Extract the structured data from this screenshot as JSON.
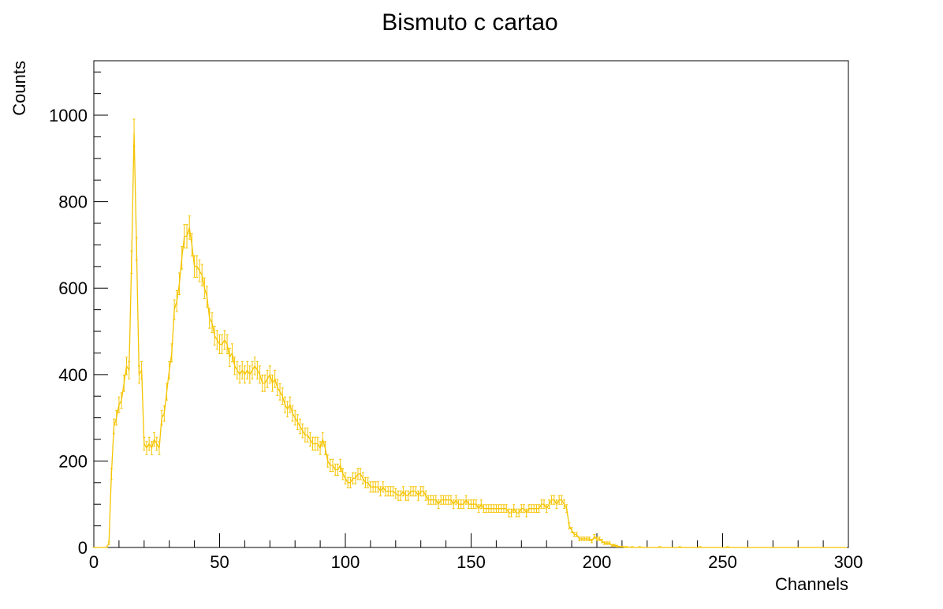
{
  "chart_data": {
    "type": "errorbar",
    "title": "Bismuto c cartao",
    "x_label": "Channels",
    "y_label": "Counts",
    "color": "#f5c400",
    "xlim": [
      0,
      300
    ],
    "ylim": [
      0,
      1126
    ],
    "xticks": [
      0,
      50,
      100,
      150,
      200,
      250,
      300
    ],
    "yticks": [
      0,
      200,
      400,
      600,
      800,
      1000
    ],
    "xticks_minor": [
      10,
      20,
      30,
      40,
      60,
      70,
      80,
      90,
      110,
      120,
      130,
      140,
      160,
      170,
      180,
      190,
      210,
      220,
      230,
      240,
      260,
      270,
      280,
      290
    ],
    "yticks_minor": [
      50,
      100,
      150,
      250,
      300,
      350,
      450,
      500,
      550,
      650,
      700,
      750,
      850,
      900,
      950,
      1050,
      1100
    ],
    "x": [
      0,
      1,
      2,
      3,
      4,
      5,
      6,
      7,
      8,
      9,
      10,
      11,
      12,
      13,
      14,
      15,
      16,
      17,
      18,
      19,
      20,
      21,
      22,
      23,
      24,
      25,
      26,
      27,
      28,
      29,
      30,
      31,
      32,
      33,
      34,
      35,
      36,
      37,
      38,
      39,
      40,
      41,
      42,
      43,
      44,
      45,
      46,
      47,
      48,
      49,
      50,
      51,
      52,
      53,
      54,
      55,
      56,
      57,
      58,
      59,
      60,
      61,
      62,
      63,
      64,
      65,
      66,
      67,
      68,
      69,
      70,
      71,
      72,
      73,
      74,
      75,
      76,
      77,
      78,
      79,
      80,
      81,
      82,
      83,
      84,
      85,
      86,
      87,
      88,
      89,
      90,
      91,
      92,
      93,
      94,
      95,
      96,
      97,
      98,
      99,
      100,
      101,
      102,
      103,
      104,
      105,
      106,
      107,
      108,
      109,
      110,
      111,
      112,
      113,
      114,
      115,
      116,
      117,
      118,
      119,
      120,
      121,
      122,
      123,
      124,
      125,
      126,
      127,
      128,
      129,
      130,
      131,
      132,
      133,
      134,
      135,
      136,
      137,
      138,
      139,
      140,
      141,
      142,
      143,
      144,
      145,
      146,
      147,
      148,
      149,
      150,
      151,
      152,
      153,
      154,
      155,
      156,
      157,
      158,
      159,
      160,
      161,
      162,
      163,
      164,
      165,
      166,
      167,
      168,
      169,
      170,
      171,
      172,
      173,
      174,
      175,
      176,
      177,
      178,
      179,
      180,
      181,
      182,
      183,
      184,
      185,
      186,
      187,
      188,
      189,
      190,
      191,
      192,
      193,
      194,
      195,
      196,
      197,
      198,
      199,
      200,
      201,
      202,
      203,
      204,
      205,
      206,
      207,
      208,
      209,
      210,
      211,
      212,
      213,
      214,
      215,
      216,
      217,
      218,
      219,
      220,
      221,
      222,
      223,
      224,
      225,
      226,
      227,
      228,
      229,
      230,
      231,
      232,
      233,
      234,
      235,
      236,
      237,
      238,
      239,
      240,
      241,
      242,
      243,
      244,
      245,
      246,
      247,
      248,
      249,
      250,
      251,
      252,
      253,
      254,
      255,
      256,
      257,
      258,
      259,
      260,
      261,
      262,
      263,
      264,
      265,
      266,
      267,
      268,
      269,
      270,
      271,
      272,
      273,
      274,
      275,
      276,
      277,
      278,
      279,
      280,
      281,
      282,
      283,
      284,
      285,
      286,
      287,
      288,
      289,
      290,
      291,
      292,
      293,
      294,
      295,
      296,
      297,
      298,
      299
    ],
    "values": [
      0,
      0,
      0,
      0,
      0,
      0,
      10,
      170,
      280,
      300,
      330,
      340,
      380,
      420,
      410,
      660,
      960,
      690,
      400,
      410,
      240,
      230,
      240,
      230,
      250,
      240,
      230,
      300,
      310,
      360,
      410,
      450,
      550,
      570,
      610,
      670,
      720,
      720,
      740,
      700,
      650,
      650,
      640,
      630,
      600,
      580,
      530,
      520,
      490,
      480,
      470,
      470,
      480,
      470,
      440,
      450,
      420,
      410,
      400,
      410,
      400,
      410,
      400,
      410,
      420,
      410,
      400,
      380,
      380,
      390,
      400,
      380,
      390,
      370,
      360,
      350,
      330,
      320,
      330,
      310,
      300,
      290,
      280,
      270,
      260,
      260,
      250,
      240,
      240,
      240,
      230,
      250,
      230,
      200,
      190,
      190,
      180,
      180,
      190,
      170,
      160,
      150,
      150,
      160,
      160,
      170,
      170,
      160,
      150,
      150,
      140,
      140,
      140,
      140,
      130,
      140,
      130,
      130,
      130,
      130,
      125,
      120,
      120,
      130,
      120,
      120,
      130,
      130,
      130,
      120,
      130,
      130,
      120,
      110,
      110,
      110,
      110,
      100,
      110,
      110,
      110,
      110,
      110,
      100,
      110,
      100,
      100,
      100,
      110,
      100,
      100,
      100,
      100,
      90,
      100,
      90,
      90,
      90,
      90,
      90,
      90,
      90,
      90,
      90,
      90,
      80,
      80,
      90,
      80,
      80,
      90,
      90,
      80,
      90,
      90,
      90,
      90,
      90,
      100,
      100,
      90,
      100,
      110,
      110,
      100,
      110,
      110,
      100,
      90,
      50,
      40,
      30,
      30,
      20,
      20,
      20,
      20,
      20,
      15,
      25,
      20,
      20,
      15,
      10,
      10,
      10,
      5,
      5,
      3,
      2,
      2,
      1,
      1,
      0,
      1,
      0,
      0,
      1,
      0,
      0,
      0,
      0,
      0,
      0,
      0,
      1,
      0,
      0,
      0,
      0,
      0,
      0,
      0,
      1,
      0,
      0,
      0,
      0,
      0,
      0,
      0,
      1,
      0,
      0,
      0,
      0,
      0,
      0,
      0,
      0,
      0,
      0,
      1,
      0,
      0,
      0,
      0,
      0,
      0,
      0,
      0,
      0,
      0,
      0,
      0,
      0,
      0,
      0,
      0,
      0,
      0,
      0,
      0,
      0,
      0,
      0,
      0,
      0,
      0,
      0,
      0,
      0,
      0,
      0,
      0,
      0,
      0,
      0,
      0,
      0,
      0,
      0,
      0,
      0,
      0,
      0,
      0,
      0,
      0,
      0
    ],
    "errors": [
      0,
      0,
      0,
      0,
      0,
      0,
      3,
      13,
      17,
      17,
      18,
      18,
      19,
      20,
      20,
      26,
      31,
      26,
      20,
      20,
      15,
      15,
      15,
      15,
      16,
      15,
      15,
      17,
      18,
      19,
      20,
      21,
      23,
      24,
      25,
      26,
      27,
      27,
      27,
      26,
      25,
      25,
      25,
      25,
      24,
      24,
      23,
      23,
      22,
      22,
      22,
      22,
      22,
      22,
      21,
      21,
      20,
      20,
      20,
      20,
      20,
      20,
      20,
      20,
      20,
      20,
      20,
      19,
      19,
      20,
      20,
      19,
      20,
      19,
      19,
      19,
      18,
      18,
      18,
      18,
      17,
      17,
      17,
      16,
      16,
      16,
      16,
      15,
      15,
      15,
      15,
      16,
      15,
      14,
      14,
      14,
      13,
      13,
      14,
      13,
      13,
      12,
      12,
      13,
      13,
      13,
      13,
      13,
      12,
      12,
      12,
      12,
      12,
      12,
      11,
      12,
      11,
      11,
      11,
      11,
      11,
      11,
      11,
      11,
      11,
      11,
      11,
      11,
      11,
      11,
      11,
      11,
      11,
      10,
      10,
      10,
      10,
      10,
      10,
      10,
      10,
      10,
      10,
      10,
      10,
      10,
      10,
      10,
      10,
      10,
      10,
      10,
      10,
      9,
      10,
      9,
      9,
      9,
      9,
      9,
      9,
      9,
      9,
      9,
      9,
      9,
      9,
      9,
      9,
      9,
      9,
      9,
      9,
      9,
      9,
      9,
      9,
      9,
      10,
      10,
      9,
      10,
      10,
      10,
      10,
      10,
      10,
      10,
      9,
      7,
      6,
      5,
      5,
      4,
      4,
      4,
      4,
      4,
      4,
      5,
      4,
      4,
      4,
      3,
      3,
      3,
      2,
      2,
      2,
      1,
      1,
      1,
      1,
      0,
      1,
      0,
      0,
      1,
      0,
      0,
      0,
      0,
      0,
      0,
      0,
      1,
      0,
      0,
      0,
      0,
      0,
      0,
      0,
      1,
      0,
      0,
      0,
      0,
      0,
      0,
      0,
      1,
      0,
      0,
      0,
      0,
      0,
      0,
      0,
      0,
      0,
      0,
      1,
      0,
      0,
      0,
      0,
      0,
      0,
      0,
      0,
      0,
      0,
      0,
      0,
      0,
      0,
      0,
      0,
      0,
      0,
      0,
      0,
      0,
      0,
      0,
      0,
      0,
      0,
      0,
      0,
      0,
      0,
      0,
      0,
      0,
      0,
      0,
      0,
      0,
      0,
      0,
      0,
      0,
      0,
      0,
      0,
      0,
      0,
      0
    ]
  }
}
